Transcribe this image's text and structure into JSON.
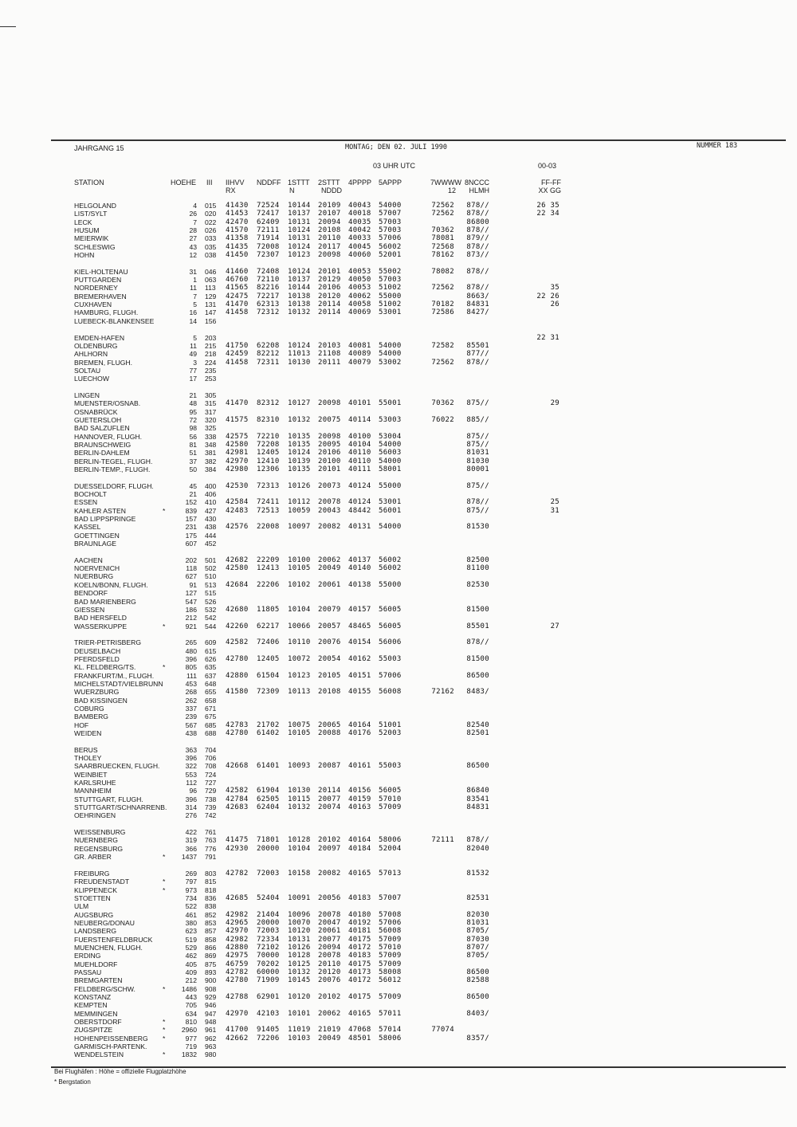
{
  "header": {
    "volume": "JAHRGANG 15",
    "date": "MONTAG; DEN 02. JULI 1990",
    "number": "NUMMER 183",
    "time": "03 UHR UTC",
    "period": "00-03"
  },
  "columns": {
    "station": "STATION",
    "hoehe": "HOEHE",
    "iii": "III",
    "c1": [
      "IIHVV",
      "RX"
    ],
    "c2": [
      "NDDFF",
      ""
    ],
    "c3": [
      "1STTT",
      "N"
    ],
    "c4": [
      "2STTT",
      "NDDD"
    ],
    "c5": [
      "4PPPP",
      ""
    ],
    "c6": [
      "5APPP",
      ""
    ],
    "w7": [
      "7WWWW",
      "12"
    ],
    "n8": [
      "8NCCC",
      "HLMH"
    ],
    "ff": [
      "FF-FF",
      "XX GG"
    ]
  },
  "groups": [
    {
      "rows": [
        [
          "HELGOLAND",
          "",
          "4",
          "015",
          "41430",
          "72524",
          "10144",
          "20109",
          "40043",
          "54000",
          "72562",
          "878//",
          "26 35"
        ],
        [
          "LIST/SYLT",
          "",
          "26",
          "020",
          "41453",
          "72417",
          "10137",
          "20107",
          "40018",
          "57007",
          "72562",
          "878//",
          "22 34"
        ],
        [
          "LECK",
          "",
          "7",
          "022",
          "42470",
          "62409",
          "10131",
          "20094",
          "40035",
          "57003",
          "",
          "86800",
          ""
        ],
        [
          "HUSUM",
          "",
          "28",
          "026",
          "41570",
          "72111",
          "10124",
          "20108",
          "40042",
          "57003",
          "70362",
          "878//",
          ""
        ],
        [
          "MEIERWIK",
          "",
          "27",
          "033",
          "41358",
          "71914",
          "10131",
          "20110",
          "40033",
          "57006",
          "78081",
          "879//",
          ""
        ],
        [
          "SCHLESWIG",
          "",
          "43",
          "035",
          "41435",
          "72008",
          "10124",
          "20117",
          "40045",
          "56002",
          "72568",
          "878//",
          ""
        ],
        [
          "HOHN",
          "",
          "12",
          "038",
          "41450",
          "72307",
          "10123",
          "20098",
          "40060",
          "52001",
          "78162",
          "873//",
          ""
        ]
      ]
    },
    {
      "rows": [
        [
          "KIEL-HOLTENAU",
          "",
          "31",
          "046",
          "41460",
          "72408",
          "10124",
          "20101",
          "40053",
          "55002",
          "78082",
          "878//",
          ""
        ],
        [
          "PUTTGARDEN",
          "",
          "1",
          "063",
          "46760",
          "72110",
          "10137",
          "20129",
          "40050",
          "57003",
          "",
          "",
          ""
        ],
        [
          "NORDERNEY",
          "",
          "11",
          "113",
          "41565",
          "82216",
          "10144",
          "20106",
          "40053",
          "51002",
          "72562",
          "878//",
          "35"
        ],
        [
          "BREMERHAVEN",
          "",
          "7",
          "129",
          "42475",
          "72217",
          "10138",
          "20120",
          "40062",
          "55000",
          "",
          "8663/",
          "22 26"
        ],
        [
          "CUXHAVEN",
          "",
          "5",
          "131",
          "41470",
          "62313",
          "10138",
          "20114",
          "40058",
          "51002",
          "70182",
          "84831",
          "26"
        ],
        [
          "HAMBURG, FLUGH.",
          "",
          "16",
          "147",
          "41458",
          "72312",
          "10132",
          "20114",
          "40069",
          "53001",
          "72586",
          "8427/",
          ""
        ],
        [
          "LUEBECK-BLANKENSEE",
          "",
          "14",
          "156"
        ]
      ]
    },
    {
      "rows": [
        [
          "EMDEN-HAFEN",
          "",
          "5",
          "203",
          "",
          "",
          "",
          "",
          "",
          "",
          "",
          "",
          "22 31"
        ],
        [
          "OLDENBURG",
          "",
          "11",
          "215",
          "41750",
          "62208",
          "10124",
          "20103",
          "40081",
          "54000",
          "72582",
          "85501",
          ""
        ],
        [
          "AHLHORN",
          "",
          "49",
          "218",
          "42459",
          "82212",
          "11013",
          "21108",
          "40089",
          "54000",
          "",
          "877//",
          ""
        ],
        [
          "BREMEN, FLUGH.",
          "",
          "3",
          "224",
          "41458",
          "72311",
          "10130",
          "20111",
          "40079",
          "53002",
          "72562",
          "878//",
          ""
        ],
        [
          "SOLTAU",
          "",
          "77",
          "235"
        ],
        [
          "LUECHOW",
          "",
          "17",
          "253"
        ]
      ]
    },
    {
      "rows": [
        [
          "LINGEN",
          "",
          "21",
          "305"
        ],
        [
          "MUENSTER/OSNAB.",
          "",
          "48",
          "315",
          "41470",
          "82312",
          "10127",
          "20098",
          "40101",
          "55001",
          "70362",
          "875//",
          "29"
        ],
        [
          "OSNABRÜCK",
          "",
          "95",
          "317"
        ],
        [
          "GUETERSLOH",
          "",
          "72",
          "320",
          "41575",
          "82310",
          "10132",
          "20075",
          "40114",
          "53003",
          "76022",
          "885//",
          ""
        ],
        [
          "BAD SALZUFLEN",
          "",
          "98",
          "325"
        ],
        [
          "HANNOVER, FLUGH.",
          "",
          "56",
          "338",
          "42575",
          "72210",
          "10135",
          "20098",
          "40100",
          "53004",
          "",
          "875//",
          ""
        ],
        [
          "BRAUNSCHWEIG",
          "",
          "81",
          "348",
          "42580",
          "72208",
          "10135",
          "20095",
          "40104",
          "54000",
          "",
          "875//",
          ""
        ],
        [
          "BERLIN-DAHLEM",
          "",
          "51",
          "381",
          "42981",
          "12405",
          "10124",
          "20106",
          "40110",
          "56003",
          "",
          "81031",
          ""
        ],
        [
          "BERLIN-TEGEL, FLUGH.",
          "",
          "37",
          "382",
          "42970",
          "12410",
          "10139",
          "20100",
          "40110",
          "54000",
          "",
          "81030",
          ""
        ],
        [
          "BERLIN-TEMP., FLUGH.",
          "",
          "50",
          "384",
          "42980",
          "12306",
          "10135",
          "20101",
          "40111",
          "58001",
          "",
          "80001",
          ""
        ]
      ]
    },
    {
      "rows": [
        [
          "DUESSELDORF, FLUGH.",
          "",
          "45",
          "400",
          "42530",
          "72313",
          "10126",
          "20073",
          "40124",
          "55000",
          "",
          "875//",
          ""
        ],
        [
          "BOCHOLT",
          "",
          "21",
          "406"
        ],
        [
          "ESSEN",
          "",
          "152",
          "410",
          "42584",
          "72411",
          "10112",
          "20078",
          "40124",
          "53001",
          "",
          "878//",
          "25"
        ],
        [
          "KAHLER ASTEN",
          "*",
          "839",
          "427",
          "42483",
          "72513",
          "10059",
          "20043",
          "48442",
          "56001",
          "",
          "875//",
          "31"
        ],
        [
          "BAD LIPPSPRINGE",
          "",
          "157",
          "430"
        ],
        [
          "KASSEL",
          "",
          "231",
          "438",
          "42576",
          "22008",
          "10097",
          "20082",
          "40131",
          "54000",
          "",
          "81530",
          ""
        ],
        [
          "GOETTINGEN",
          "",
          "175",
          "444"
        ],
        [
          "BRAUNLAGE",
          "",
          "607",
          "452"
        ]
      ]
    },
    {
      "rows": [
        [
          "AACHEN",
          "",
          "202",
          "501",
          "42682",
          "22209",
          "10100",
          "20062",
          "40137",
          "56002",
          "",
          "82500",
          ""
        ],
        [
          "NOERVENICH",
          "",
          "118",
          "502",
          "42580",
          "12413",
          "10105",
          "20049",
          "40140",
          "56002",
          "",
          "81100",
          ""
        ],
        [
          "NUERBURG",
          "",
          "627",
          "510"
        ],
        [
          "KOELN/BONN, FLUGH.",
          "",
          "91",
          "513",
          "42684",
          "22206",
          "10102",
          "20061",
          "40138",
          "55000",
          "",
          "82530",
          ""
        ],
        [
          "BENDORF",
          "",
          "127",
          "515"
        ],
        [
          "BAD MARIENBERG",
          "",
          "547",
          "526"
        ],
        [
          "GIESSEN",
          "",
          "186",
          "532",
          "42680",
          "11805",
          "10104",
          "20079",
          "40157",
          "56005",
          "",
          "81500",
          ""
        ],
        [
          "BAD HERSFELD",
          "",
          "212",
          "542"
        ],
        [
          "WASSERKUPPE",
          "*",
          "921",
          "544",
          "42260",
          "62217",
          "10066",
          "20057",
          "48465",
          "56005",
          "",
          "85501",
          "27"
        ]
      ]
    },
    {
      "rows": [
        [
          "TRIER-PETRISBERG",
          "",
          "265",
          "609",
          "42582",
          "72406",
          "10110",
          "20076",
          "40154",
          "56006",
          "",
          "878//",
          ""
        ],
        [
          "DEUSELBACH",
          "",
          "480",
          "615"
        ],
        [
          "PFERDSFELD",
          "",
          "396",
          "626",
          "42780",
          "12405",
          "10072",
          "20054",
          "40162",
          "55003",
          "",
          "81500",
          ""
        ],
        [
          "KL. FELDBERG/TS.",
          "*",
          "805",
          "635"
        ],
        [
          "FRANKFURT/M., FLUGH.",
          "",
          "111",
          "637",
          "42880",
          "61504",
          "10123",
          "20105",
          "40151",
          "57006",
          "",
          "86500",
          ""
        ],
        [
          "MICHELSTADT/VIELBRUNN",
          "",
          "453",
          "648"
        ],
        [
          "WUERZBURG",
          "",
          "268",
          "655",
          "41580",
          "72309",
          "10113",
          "20108",
          "40155",
          "56008",
          "72162",
          "8483/",
          ""
        ],
        [
          "BAD KISSINGEN",
          "",
          "262",
          "658"
        ],
        [
          "COBURG",
          "",
          "337",
          "671"
        ],
        [
          "BAMBERG",
          "",
          "239",
          "675"
        ],
        [
          "HOF",
          "",
          "567",
          "685",
          "42783",
          "21702",
          "10075",
          "20065",
          "40164",
          "51001",
          "",
          "82540",
          ""
        ],
        [
          "WEIDEN",
          "",
          "438",
          "688",
          "42780",
          "61402",
          "10105",
          "20088",
          "40176",
          "52003",
          "",
          "82501",
          ""
        ]
      ]
    },
    {
      "rows": [
        [
          "BERUS",
          "",
          "363",
          "704"
        ],
        [
          "THOLEY",
          "",
          "396",
          "706"
        ],
        [
          "SAARBRUECKEN, FLUGH.",
          "",
          "322",
          "708",
          "42668",
          "61401",
          "10093",
          "20087",
          "40161",
          "55003",
          "",
          "86500",
          ""
        ],
        [
          "WEINBIET",
          "",
          "553",
          "724"
        ],
        [
          "KARLSRUHE",
          "",
          "112",
          "727"
        ],
        [
          "MANNHEIM",
          "",
          "96",
          "729",
          "42582",
          "61904",
          "10130",
          "20114",
          "40156",
          "56005",
          "",
          "86840",
          ""
        ],
        [
          "STUTTGART, FLUGH.",
          "",
          "396",
          "738",
          "42784",
          "62505",
          "10115",
          "20077",
          "40159",
          "57010",
          "",
          "83541",
          ""
        ],
        [
          "STUTTGART/SCHNARRENB.",
          "",
          "314",
          "739",
          "42683",
          "62404",
          "10132",
          "20074",
          "40163",
          "57009",
          "",
          "84831",
          ""
        ],
        [
          "OEHRINGEN",
          "",
          "276",
          "742"
        ]
      ]
    },
    {
      "rows": [
        [
          "WEISSENBURG",
          "",
          "422",
          "761"
        ],
        [
          "NUERNBERG",
          "",
          "319",
          "763",
          "41475",
          "71801",
          "10128",
          "20102",
          "40164",
          "58006",
          "72111",
          "878//",
          ""
        ],
        [
          "REGENSBURG",
          "",
          "366",
          "776",
          "42930",
          "20000",
          "10104",
          "20097",
          "40184",
          "52004",
          "",
          "82040",
          ""
        ],
        [
          "GR. ARBER",
          "*",
          "1437",
          "791"
        ]
      ]
    },
    {
      "rows": [
        [
          "FREIBURG",
          "",
          "269",
          "803",
          "42782",
          "72003",
          "10158",
          "20082",
          "40165",
          "57013",
          "",
          "81532",
          ""
        ],
        [
          "FREUDENSTADT",
          "*",
          "797",
          "815"
        ],
        [
          "KLIPPENECK",
          "*",
          "973",
          "818"
        ],
        [
          "STOETTEN",
          "",
          "734",
          "836",
          "42685",
          "52404",
          "10091",
          "20056",
          "40183",
          "57007",
          "",
          "82531",
          ""
        ],
        [
          "ULM",
          "",
          "522",
          "838"
        ],
        [
          "AUGSBURG",
          "",
          "461",
          "852",
          "42982",
          "21404",
          "10096",
          "20078",
          "40180",
          "57008",
          "",
          "82030",
          ""
        ],
        [
          "NEUBERG/DONAU",
          "",
          "380",
          "853",
          "42965",
          "20000",
          "10070",
          "20047",
          "40192",
          "57006",
          "",
          "81031",
          ""
        ],
        [
          "LANDSBERG",
          "",
          "623",
          "857",
          "42970",
          "72003",
          "10120",
          "20061",
          "40181",
          "56008",
          "",
          "8705/",
          ""
        ],
        [
          "FUERSTENFELDBRUCK",
          "",
          "519",
          "858",
          "42982",
          "72334",
          "10131",
          "20077",
          "40175",
          "57009",
          "",
          "87030",
          ""
        ],
        [
          "MUENCHEN, FLUGH.",
          "",
          "529",
          "866",
          "42880",
          "72102",
          "10126",
          "20094",
          "40172",
          "57010",
          "",
          "8707/",
          ""
        ],
        [
          "ERDING",
          "",
          "462",
          "869",
          "42975",
          "70000",
          "10128",
          "20078",
          "40183",
          "57009",
          "",
          "8705/",
          ""
        ],
        [
          "MUEHLDORF",
          "",
          "405",
          "875",
          "46759",
          "70202",
          "10125",
          "20110",
          "40175",
          "57009",
          "",
          "",
          ""
        ],
        [
          "PASSAU",
          "",
          "409",
          "893",
          "42782",
          "60000",
          "10132",
          "20120",
          "40173",
          "58008",
          "",
          "86500",
          ""
        ],
        [
          "BREMGARTEN",
          "",
          "212",
          "900",
          "42780",
          "71909",
          "10145",
          "20076",
          "40172",
          "56012",
          "",
          "82588",
          ""
        ],
        [
          "FELDBERG/SCHW.",
          "*",
          "1486",
          "908"
        ],
        [
          "KONSTANZ",
          "",
          "443",
          "929",
          "42788",
          "62901",
          "10120",
          "20102",
          "40175",
          "57009",
          "",
          "86500",
          ""
        ],
        [
          "KEMPTEN",
          "",
          "705",
          "946"
        ],
        [
          "MEMMINGEN",
          "",
          "634",
          "947",
          "42970",
          "42103",
          "10101",
          "20062",
          "40165",
          "57011",
          "",
          "8403/",
          ""
        ],
        [
          "OBERSTDORF",
          "*",
          "810",
          "948"
        ],
        [
          "ZUGSPITZE",
          "*",
          "2960",
          "961",
          "41700",
          "91405",
          "11019",
          "21019",
          "47068",
          "57014",
          "77074",
          "",
          ""
        ],
        [
          "HOHENPEISSENBERG",
          "*",
          "977",
          "962",
          "42662",
          "72206",
          "10103",
          "20049",
          "48501",
          "58006",
          "",
          "8357/",
          ""
        ],
        [
          "GARMISCH-PARTENK.",
          "",
          "719",
          "963"
        ],
        [
          "WENDELSTEIN",
          "*",
          "1832",
          "980"
        ]
      ]
    }
  ],
  "footer": {
    "note_airport": "Bei Flughäfen : Höhe = offizielle Flugplatzhöhe",
    "note_mountain": "* Bergstation"
  }
}
